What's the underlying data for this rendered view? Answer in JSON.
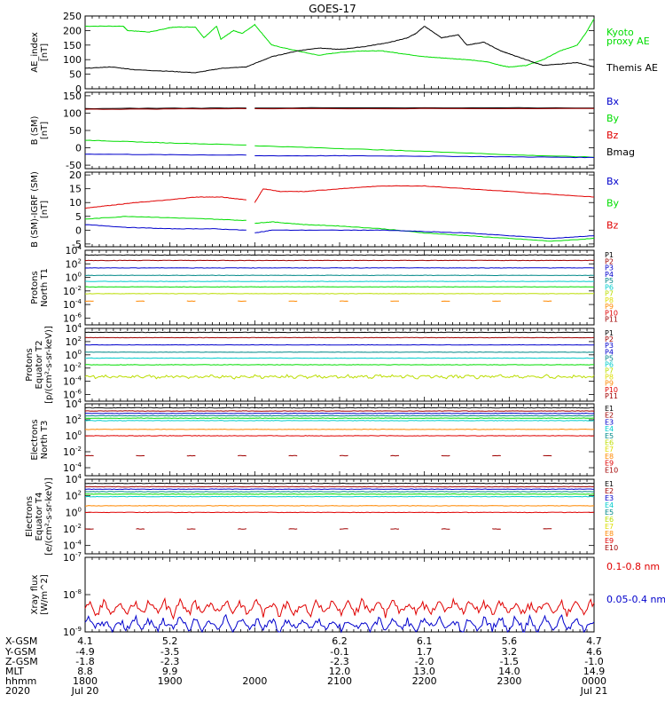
{
  "title": "GOES-17",
  "colors": {
    "black": "#000000",
    "red": "#e00000",
    "green": "#00dd00",
    "blue": "#0000cc",
    "darkred": "#a00000",
    "teal": "#008888",
    "cyan": "#00cccc",
    "yellowgreen": "#bbdd00",
    "yellow": "#dddd00",
    "orange": "#ff8800"
  },
  "chart_data": [
    {
      "type": "line",
      "ylabel": "AE_index\n[nT]",
      "ylim": [
        0,
        250
      ],
      "yticks": [
        "0",
        "50",
        "100",
        "150",
        "200",
        "250"
      ],
      "legend": [
        {
          "text": "Kyoto",
          "color": "green"
        },
        {
          "text": "proxy AE",
          "color": "green"
        },
        {
          "text": "Themis AE",
          "color": "black"
        }
      ],
      "series": [
        {
          "color": "green",
          "x": [
            18.0,
            18.45,
            18.5,
            18.75,
            18.85,
            19.0,
            19.1,
            19.3,
            19.4,
            19.55,
            19.6,
            19.75,
            19.85,
            20.0,
            20.2,
            20.5,
            20.75,
            21.0,
            21.25,
            21.5,
            21.75,
            22.0,
            22.25,
            22.5,
            22.75,
            22.9,
            23.0,
            23.2,
            23.4,
            23.6,
            23.8,
            23.9,
            24.0
          ],
          "y": [
            215,
            215,
            200,
            195,
            200,
            210,
            212,
            212,
            175,
            215,
            170,
            200,
            190,
            220,
            150,
            130,
            115,
            125,
            130,
            130,
            120,
            110,
            105,
            100,
            92,
            80,
            75,
            80,
            100,
            130,
            150,
            190,
            240
          ]
        },
        {
          "color": "black",
          "x": [
            18.0,
            18.3,
            18.6,
            19.0,
            19.3,
            19.6,
            19.9,
            20.2,
            20.5,
            20.75,
            21.0,
            21.3,
            21.6,
            21.8,
            21.9,
            22.0,
            22.2,
            22.4,
            22.5,
            22.7,
            22.9,
            23.0,
            23.2,
            23.4,
            23.6,
            23.8,
            24.0
          ],
          "y": [
            70,
            75,
            65,
            60,
            55,
            70,
            75,
            110,
            130,
            140,
            135,
            145,
            160,
            175,
            190,
            215,
            175,
            185,
            150,
            160,
            130,
            120,
            100,
            80,
            85,
            90,
            75
          ]
        }
      ]
    },
    {
      "type": "line",
      "ylabel": "B (SM)\n[nT]",
      "ylim": [
        -60,
        160
      ],
      "yticks": [
        "-50",
        "0",
        "50",
        "100",
        "150"
      ],
      "legend": [
        {
          "text": "Bx",
          "color": "blue"
        },
        {
          "text": "By",
          "color": "green"
        },
        {
          "text": "Bz",
          "color": "red"
        },
        {
          "text": "Bmag",
          "color": "black"
        }
      ],
      "series": [
        {
          "color": "black",
          "x": [
            18.0,
            19.9,
            20.0,
            24.0
          ],
          "y": [
            113,
            115,
            115,
            115
          ]
        },
        {
          "color": "darkred",
          "x": [
            18.0,
            19.9,
            20.0,
            24.0
          ],
          "y": [
            111,
            113,
            113,
            113
          ]
        },
        {
          "color": "green",
          "x": [
            18.0,
            18.5,
            19.0,
            19.9,
            20.0,
            21.0,
            22.0,
            23.0,
            24.0
          ],
          "y": [
            22,
            18,
            14,
            8,
            6,
            -2,
            -10,
            -20,
            -27
          ]
        },
        {
          "color": "blue",
          "x": [
            18.0,
            19.0,
            19.9,
            20.0,
            21.0,
            22.0,
            23.0,
            24.0
          ],
          "y": [
            -18,
            -20,
            -21,
            -23,
            -23,
            -24,
            -26,
            -28
          ]
        }
      ],
      "gap": [
        19.9,
        20.0
      ]
    },
    {
      "type": "line",
      "ylabel": "B (SM)-IGRF (SM)\n[nT]",
      "ylim": [
        -6,
        21
      ],
      "yticks": [
        "-5",
        "0",
        "5",
        "10",
        "15",
        "20"
      ],
      "legend": [
        {
          "text": "Bx",
          "color": "blue"
        },
        {
          "text": "By",
          "color": "green"
        },
        {
          "text": "Bz",
          "color": "red"
        }
      ],
      "series": [
        {
          "color": "red",
          "x": [
            18.0,
            18.3,
            18.6,
            19.0,
            19.3,
            19.6,
            19.9,
            20.0,
            20.1,
            20.3,
            20.6,
            21.0,
            21.5,
            22.0,
            22.5,
            23.0,
            23.5,
            24.0
          ],
          "y": [
            8,
            9,
            10,
            11,
            12,
            12,
            11,
            10,
            15,
            14,
            14,
            15,
            16,
            16,
            15,
            14,
            13,
            12
          ]
        },
        {
          "color": "green",
          "x": [
            18.0,
            18.5,
            19.0,
            19.5,
            19.9,
            20.0,
            20.2,
            20.6,
            21.0,
            21.5,
            22.0,
            22.5,
            23.0,
            23.5,
            24.0
          ],
          "y": [
            4,
            5,
            4.5,
            4,
            3.5,
            2.5,
            3,
            2,
            1.5,
            0.5,
            -1,
            -2,
            -3,
            -4,
            -3
          ]
        },
        {
          "color": "blue",
          "x": [
            18.0,
            18.5,
            19.0,
            19.5,
            19.9,
            20.0,
            20.2,
            21.0,
            21.5,
            22.0,
            22.5,
            23.0,
            23.5,
            24.0
          ],
          "y": [
            2,
            1,
            0.5,
            0.5,
            0,
            -1,
            0,
            0,
            0,
            -0.5,
            -1,
            -2,
            -3,
            -2
          ]
        }
      ],
      "gap": [
        19.9,
        20.0
      ]
    },
    {
      "type": "line",
      "ylabel": "Protons\nNorth T1",
      "yscale": "log",
      "ylim": [
        -7,
        4
      ],
      "yticks": [
        "10^-6",
        "10^-4",
        "10^-2",
        "10^0",
        "10^2",
        "10^4"
      ],
      "legend": [
        {
          "text": "P1",
          "color": "black"
        },
        {
          "text": "P2",
          "color": "darkred"
        },
        {
          "text": "P3",
          "color": "blue"
        },
        {
          "text": "P4",
          "color": "blue"
        },
        {
          "text": "P5",
          "color": "teal"
        },
        {
          "text": "P6",
          "color": "cyan"
        },
        {
          "text": "P7",
          "color": "yellowgreen"
        },
        {
          "text": "P8",
          "color": "yellow"
        },
        {
          "text": "P9",
          "color": "orange"
        },
        {
          "text": "P10",
          "color": "red"
        },
        {
          "text": "P11",
          "color": "darkred"
        }
      ],
      "series": [
        {
          "color": "black",
          "level": 3.3
        },
        {
          "color": "darkred",
          "level": 2.5
        },
        {
          "color": "blue",
          "level": 1.4
        },
        {
          "color": "teal",
          "level": 0.3
        },
        {
          "color": "cyan",
          "level": -0.6
        },
        {
          "color": "green",
          "level": -1.4
        },
        {
          "color": "yellowgreen",
          "level": -2.4
        },
        {
          "color": "orange",
          "level": -3.5,
          "sparse": true
        }
      ]
    },
    {
      "type": "line",
      "ylabel": "Protons\nEquator T2\n[p/(cm²-s-sr-keV)]",
      "yscale": "log",
      "ylim": [
        -7,
        4
      ],
      "yticks": [
        "10^-6",
        "10^-4",
        "10^-2",
        "10^0",
        "10^2",
        "10^4"
      ],
      "legend": [
        {
          "text": "P1",
          "color": "black"
        },
        {
          "text": "P2",
          "color": "darkred"
        },
        {
          "text": "P3",
          "color": "blue"
        },
        {
          "text": "P4",
          "color": "blue"
        },
        {
          "text": "P5",
          "color": "teal"
        },
        {
          "text": "P6",
          "color": "cyan"
        },
        {
          "text": "P7",
          "color": "yellowgreen"
        },
        {
          "text": "P8",
          "color": "yellow"
        },
        {
          "text": "P9",
          "color": "orange"
        },
        {
          "text": "P10",
          "color": "red"
        },
        {
          "text": "P11",
          "color": "darkred"
        }
      ],
      "series": [
        {
          "color": "black",
          "level": 3.4
        },
        {
          "color": "darkred",
          "level": 2.6
        },
        {
          "color": "blue",
          "level": 1.5
        },
        {
          "color": "teal",
          "level": 0.4
        },
        {
          "color": "cyan",
          "level": -0.5
        },
        {
          "color": "green",
          "level": -1.5
        },
        {
          "color": "yellowgreen",
          "level": -3.3,
          "noisy": true
        }
      ]
    },
    {
      "type": "line",
      "ylabel": "Electrons\nNorth T3",
      "yscale": "log",
      "ylim": [
        -5,
        4
      ],
      "yticks": [
        "10^-4",
        "10^-2",
        "10^0",
        "10^2",
        "10^4"
      ],
      "legend": [
        {
          "text": "E1",
          "color": "black"
        },
        {
          "text": "E2",
          "color": "darkred"
        },
        {
          "text": "E3",
          "color": "blue"
        },
        {
          "text": "E4",
          "color": "cyan"
        },
        {
          "text": "E5",
          "color": "teal"
        },
        {
          "text": "E6",
          "color": "yellowgreen"
        },
        {
          "text": "E7",
          "color": "yellow"
        },
        {
          "text": "E8",
          "color": "orange"
        },
        {
          "text": "E9",
          "color": "red"
        },
        {
          "text": "E10",
          "color": "darkred"
        }
      ],
      "series": [
        {
          "color": "black",
          "level": 3.5
        },
        {
          "color": "darkred",
          "level": 3.1
        },
        {
          "color": "blue",
          "level": 2.8
        },
        {
          "color": "teal",
          "level": 2.5
        },
        {
          "color": "green",
          "level": 2.2
        },
        {
          "color": "cyan",
          "level": 1.9
        },
        {
          "color": "orange",
          "level": 0.8
        },
        {
          "color": "red",
          "level": 0.0
        },
        {
          "color": "darkred",
          "level": -2.5,
          "sparse": true
        }
      ]
    },
    {
      "type": "line",
      "ylabel": "Electrons\nEquator T4\n[e/(cm²-s-sr-keV)]",
      "yscale": "log",
      "ylim": [
        -5,
        4
      ],
      "yticks": [
        "10^-4",
        "10^-2",
        "10^0",
        "10^2",
        "10^4"
      ],
      "legend": [
        {
          "text": "E1",
          "color": "black"
        },
        {
          "text": "E2",
          "color": "darkred"
        },
        {
          "text": "E3",
          "color": "blue"
        },
        {
          "text": "E4",
          "color": "cyan"
        },
        {
          "text": "E5",
          "color": "teal"
        },
        {
          "text": "E6",
          "color": "yellowgreen"
        },
        {
          "text": "E7",
          "color": "yellow"
        },
        {
          "text": "E8",
          "color": "orange"
        },
        {
          "text": "E9",
          "color": "red"
        },
        {
          "text": "E10",
          "color": "darkred"
        }
      ],
      "series": [
        {
          "color": "black",
          "level": 3.5
        },
        {
          "color": "darkred",
          "level": 3.1
        },
        {
          "color": "blue",
          "level": 2.8
        },
        {
          "color": "teal",
          "level": 2.5
        },
        {
          "color": "green",
          "level": 2.2
        },
        {
          "color": "cyan",
          "level": 1.9
        },
        {
          "color": "orange",
          "level": 0.8
        },
        {
          "color": "red",
          "level": 0.0
        },
        {
          "color": "darkred",
          "level": -2.0,
          "sparse": true
        }
      ]
    },
    {
      "type": "line",
      "ylabel": "Xray flux\n[W/m^2]",
      "yscale": "log",
      "ylim": [
        -9,
        -7
      ],
      "yticks": [
        "10^-9",
        "10^-8",
        "10^-7"
      ],
      "legend": [
        {
          "text": "0.1-0.8 nm",
          "color": "red"
        },
        {
          "text": "0.05-0.4 nm",
          "color": "blue"
        }
      ],
      "series": [
        {
          "color": "red",
          "level": -8.35,
          "noisy": true
        },
        {
          "color": "blue",
          "level": -8.8,
          "noisy": true
        }
      ]
    }
  ],
  "xaxis": {
    "range": [
      18.0,
      24.0
    ],
    "rows": [
      {
        "label": "X-GSM",
        "values": [
          "4.1",
          "5.2",
          "",
          "6.2",
          "6.1",
          "5.6",
          "4.7"
        ]
      },
      {
        "label": "Y-GSM",
        "values": [
          "-4.9",
          "-3.5",
          "",
          "-0.1",
          "1.7",
          "3.2",
          "4.6"
        ]
      },
      {
        "label": "Z-GSM",
        "values": [
          "-1.8",
          "-2.3",
          "",
          "-2.3",
          "-2.0",
          "-1.5",
          "-1.0"
        ]
      },
      {
        "label": "MLT",
        "values": [
          "8.8",
          "9.9",
          "",
          "12.0",
          "13.0",
          "14.0",
          "14.9"
        ]
      },
      {
        "label": "hhmm",
        "values": [
          "1800",
          "1900",
          "2000",
          "2100",
          "2200",
          "2300",
          "0000"
        ]
      },
      {
        "label": "2020",
        "values": [
          "Jul 20",
          "",
          "",
          "",
          "",
          "",
          "Jul 21"
        ]
      }
    ]
  }
}
